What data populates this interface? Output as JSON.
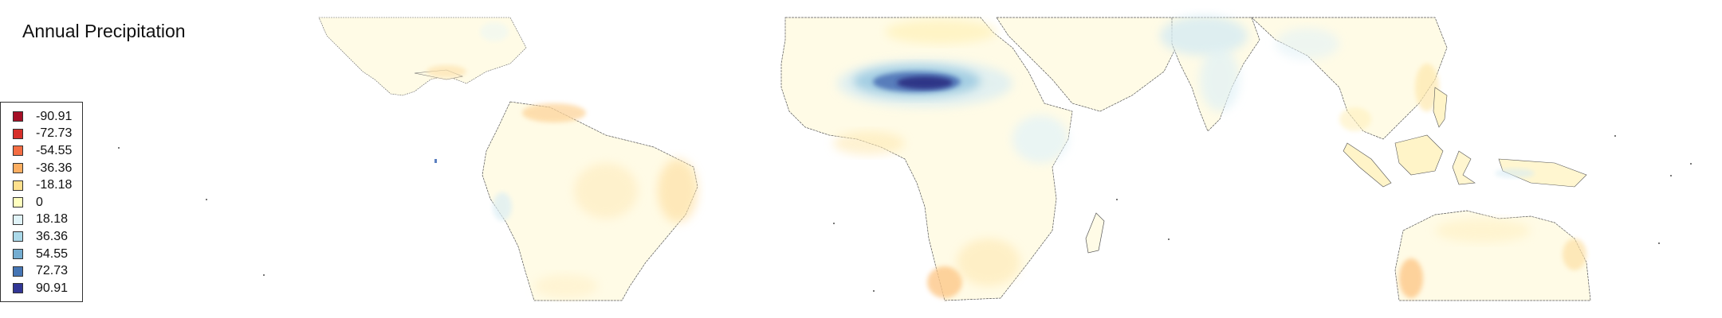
{
  "title": "Annual Precipitation",
  "legend": {
    "items": [
      {
        "label": "-90.91",
        "color": "#a50f26"
      },
      {
        "label": "-72.73",
        "color": "#d7302a"
      },
      {
        "label": "-54.55",
        "color": "#f46d43"
      },
      {
        "label": "-36.36",
        "color": "#fcae61"
      },
      {
        "label": "-18.18",
        "color": "#fee08d"
      },
      {
        "label": "0",
        "color": "#ffffbf"
      },
      {
        "label": "18.18",
        "color": "#e0f3f8"
      },
      {
        "label": "36.36",
        "color": "#abd9e9"
      },
      {
        "label": "54.55",
        "color": "#74add1"
      },
      {
        "label": "72.73",
        "color": "#4575b4"
      },
      {
        "label": "90.91",
        "color": "#313695"
      }
    ]
  },
  "map": {
    "land_color": "#fffbe6",
    "coast_color": "#555555"
  }
}
